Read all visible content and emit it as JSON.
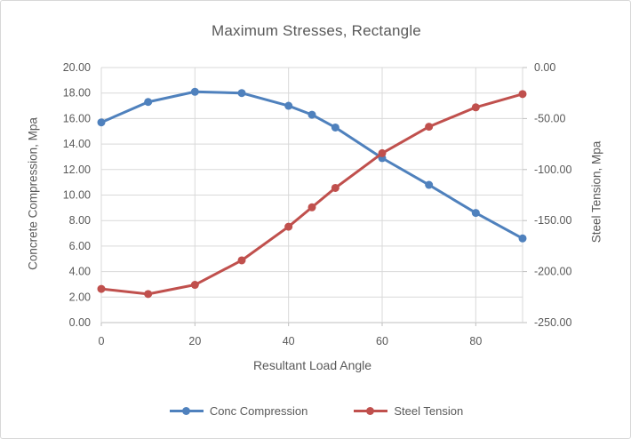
{
  "window": {
    "background": "#FFFFFF",
    "border_color": "#D8D8D8"
  },
  "chart_data": {
    "type": "line",
    "title": "Maximum Stresses, Rectangle",
    "x_axis": {
      "label": "Resultant Load Angle",
      "min": 0,
      "max": 90,
      "tick_values": [
        0,
        20,
        40,
        60,
        80
      ],
      "tick_labels": [
        "0",
        "20",
        "40",
        "60",
        "80"
      ]
    },
    "left_y_axis": {
      "label": "Concrete Compression, Mpa",
      "min": 0,
      "max": 20,
      "tick_values": [
        20,
        18,
        16,
        14,
        12,
        10,
        8,
        6,
        4,
        2,
        0
      ],
      "tick_labels": [
        "20.00",
        "18.00",
        "16.00",
        "14.00",
        "12.00",
        "10.00",
        "8.00",
        "6.00",
        "4.00",
        "2.00",
        "0.00"
      ]
    },
    "right_y_axis": {
      "label": "Steel Tension, Mpa",
      "min": -250,
      "max": 0,
      "tick_values": [
        0,
        -50,
        -100,
        -150,
        -200,
        -250
      ],
      "tick_labels": [
        "0.00",
        "-50.00",
        "-100.00",
        "-150.00",
        "-200.00",
        "-250.00"
      ]
    },
    "x": [
      0,
      10,
      20,
      30,
      40,
      45,
      50,
      60,
      70,
      80,
      90
    ],
    "series": [
      {
        "name": "Conc Compression",
        "axis": "left",
        "color": "#4F81BD",
        "values": [
          15.7,
          17.3,
          18.1,
          18.0,
          17.0,
          16.3,
          15.3,
          12.9,
          10.8,
          8.6,
          6.6
        ]
      },
      {
        "name": "Steel Tension",
        "axis": "right",
        "color": "#C0504D",
        "values": [
          -217,
          -222,
          -213,
          -189,
          -156,
          -137,
          -118,
          -84,
          -58,
          -39,
          -26
        ]
      }
    ],
    "legend": {
      "position": "bottom"
    },
    "grid": true,
    "grid_color": "#D9D9D9",
    "axis_line_color": "#BFBFBF",
    "text_color": "#595959"
  }
}
